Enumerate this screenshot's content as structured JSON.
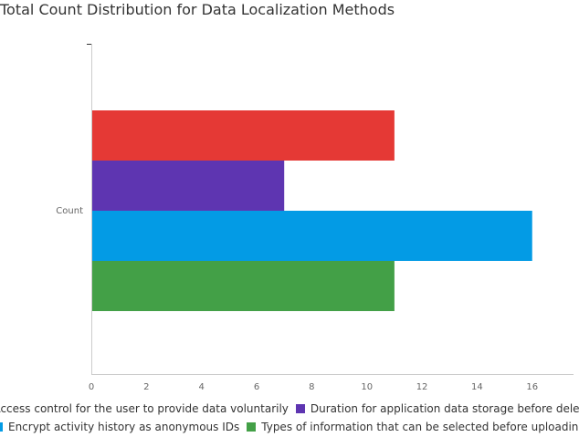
{
  "chart_data": {
    "type": "bar",
    "orientation": "horizontal",
    "title": "Total Count Distribution for Data Localization Methods",
    "categories": [
      "Count"
    ],
    "series": [
      {
        "name": "Access control for the user to provide data voluntarily",
        "values": [
          11
        ],
        "color": "#e53935"
      },
      {
        "name": "Duration for application data storage before deletion",
        "values": [
          7
        ],
        "color": "#5e35b1"
      },
      {
        "name": "Encrypt activity history as anonymous IDs",
        "values": [
          16
        ],
        "color": "#039be5"
      },
      {
        "name": "Types of information that can be selected before uploading",
        "values": [
          11
        ],
        "color": "#43a047"
      }
    ],
    "xlim": [
      0,
      17.5
    ],
    "xticks": [
      0,
      2,
      4,
      6,
      8,
      10,
      12,
      14,
      16
    ],
    "grid": false,
    "legend_position": "bottom"
  }
}
